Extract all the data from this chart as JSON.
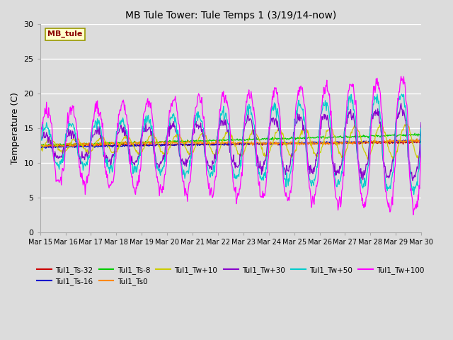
{
  "title": "MB Tule Tower: Tule Temps 1 (3/19/14-now)",
  "ylabel": "Temperature (C)",
  "ylim": [
    0,
    30
  ],
  "background_color": "#dcdcdc",
  "plot_bg_color": "#dcdcdc",
  "station_label": "MB_tule",
  "series": [
    {
      "label": "Tul1_Ts-32",
      "color": "#cc0000"
    },
    {
      "label": "Tul1_Ts-16",
      "color": "#0000cc"
    },
    {
      "label": "Tul1_Ts-8",
      "color": "#00cc00"
    },
    {
      "label": "Tul1_Ts0",
      "color": "#ff8800"
    },
    {
      "label": "Tul1_Tw+10",
      "color": "#cccc00"
    },
    {
      "label": "Tul1_Tw+30",
      "color": "#8800cc"
    },
    {
      "label": "Tul1_Tw+50",
      "color": "#00cccc"
    },
    {
      "label": "Tul1_Tw+100",
      "color": "#ff00ff"
    }
  ],
  "xtick_labels": [
    "Mar 15",
    "Mar 16",
    "Mar 17",
    "Mar 18",
    "Mar 19",
    "Mar 20",
    "Mar 21",
    "Mar 22",
    "Mar 23",
    "Mar 24",
    "Mar 25",
    "Mar 26",
    "Mar 27",
    "Mar 28",
    "Mar 29",
    "Mar 30"
  ],
  "ytick_vals": [
    0,
    5,
    10,
    15,
    20,
    25,
    30
  ],
  "num_days": 15
}
